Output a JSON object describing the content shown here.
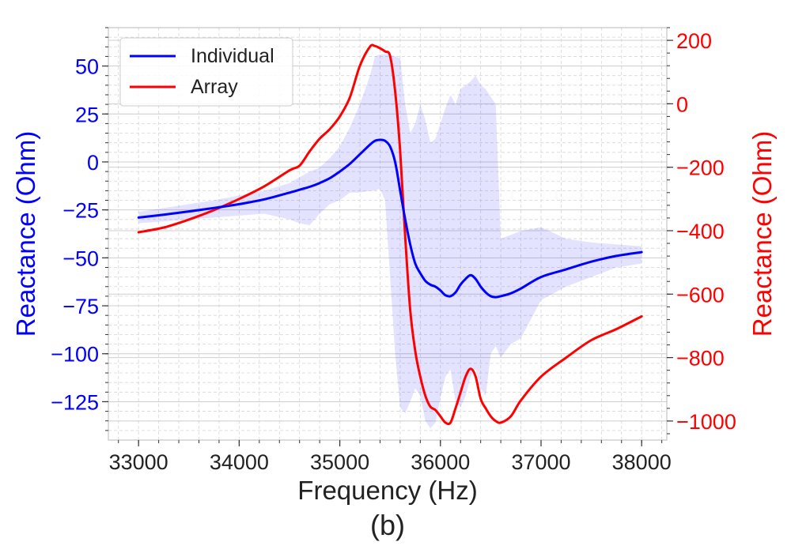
{
  "caption": "(b)",
  "chart_data": {
    "type": "line",
    "x": [
      33000,
      33250,
      33500,
      33750,
      34000,
      34250,
      34500,
      34600,
      34700,
      34800,
      34900,
      35000,
      35100,
      35200,
      35300,
      35350,
      35400,
      35450,
      35500,
      35550,
      35600,
      35650,
      35700,
      35750,
      35800,
      35850,
      35900,
      35950,
      36000,
      36050,
      36100,
      36150,
      36200,
      36250,
      36300,
      36350,
      36400,
      36450,
      36500,
      36550,
      36600,
      36700,
      36800,
      37000,
      37250,
      37500,
      37750,
      38000
    ],
    "series": [
      {
        "name": "Individual",
        "axis": "left",
        "color": "#0000ff",
        "values": [
          -29,
          -27.5,
          -25.8,
          -24,
          -22,
          -19.5,
          -16,
          -14.5,
          -13,
          -11,
          -8.5,
          -5,
          -1,
          4,
          9,
          11,
          11.5,
          11,
          8,
          0,
          -15,
          -30,
          -43,
          -53,
          -58,
          -62,
          -64,
          -65,
          -67,
          -69.5,
          -70,
          -68,
          -64,
          -61,
          -59,
          -61,
          -65,
          -68,
          -70,
          -70.5,
          -70,
          -68.5,
          -66,
          -60,
          -56,
          -52,
          -49,
          -47
        ],
        "band_upper": [
          -26,
          -24,
          -22,
          -20,
          -17.5,
          -15,
          -11,
          -8,
          -5,
          -3,
          2,
          8,
          18,
          30,
          45,
          55,
          56,
          56,
          56,
          55,
          54,
          30,
          15,
          20,
          30,
          22,
          10,
          12,
          20,
          28,
          35,
          30,
          38,
          40,
          42,
          45,
          40,
          38,
          34,
          30,
          -40,
          -38,
          -36,
          -34,
          -40,
          -42,
          -43,
          -44
        ],
        "band_lower": [
          -32,
          -31,
          -30,
          -29,
          -28,
          -27,
          -30,
          -32,
          -33,
          -27,
          -22,
          -20,
          -16,
          -16,
          -15,
          -15,
          -14,
          -20,
          -60,
          -100,
          -128,
          -131,
          -125,
          -118,
          -122,
          -135,
          -139,
          -136,
          -123,
          -112,
          -108,
          -125,
          -128,
          -122,
          -112,
          -108,
          -118,
          -122,
          -100,
          -96,
          -102,
          -95,
          -92,
          -72,
          -65,
          -60,
          -55,
          -53
        ]
      },
      {
        "name": "Array",
        "axis": "right",
        "color": "#ff0000",
        "values": [
          -405,
          -390,
          -365,
          -335,
          -300,
          -260,
          -210,
          -195,
          -150,
          -110,
          -80,
          -40,
          20,
          120,
          180,
          182,
          175,
          165,
          150,
          40,
          -150,
          -420,
          -650,
          -780,
          -860,
          -920,
          -955,
          -965,
          -985,
          -1005,
          -1005,
          -960,
          -910,
          -860,
          -835,
          -860,
          -930,
          -960,
          -985,
          -1000,
          -1005,
          -985,
          -935,
          -860,
          -800,
          -745,
          -710,
          -670
        ]
      }
    ],
    "xlabel": "Frequency (Hz)",
    "ylabel_left": "Reactance (Ohm)",
    "ylabel_right": "Reactance (Ohm)",
    "xlim": [
      32700,
      38250
    ],
    "ylim_left": [
      -145,
      70
    ],
    "ylim_right": [
      -1060,
      240
    ],
    "x_ticks": [
      33000,
      34000,
      35000,
      36000,
      37000,
      38000
    ],
    "y_ticks_left": [
      50,
      25,
      0,
      -25,
      -50,
      -75,
      -100,
      -125
    ],
    "y_tick_labels_left": [
      "50",
      "25",
      "0",
      "−25",
      "−50",
      "−75",
      "−100",
      "−125"
    ],
    "y_ticks_right": [
      200,
      0,
      -200,
      -400,
      -600,
      -800,
      -1000
    ],
    "y_tick_labels_right": [
      "200",
      "0",
      "−200",
      "−400",
      "−600",
      "−800",
      "−1000"
    ],
    "legend": {
      "position": "top-left",
      "entries": [
        {
          "label": "Individual",
          "color": "#0000ff"
        },
        {
          "label": "Array",
          "color": "#ff0000"
        }
      ]
    },
    "colors": {
      "left_axis": "#0000ff",
      "right_axis": "#ff0000",
      "band_fill": "#0000ff",
      "text": "#222222",
      "grid": "#d6d6d6"
    },
    "grid": true
  }
}
